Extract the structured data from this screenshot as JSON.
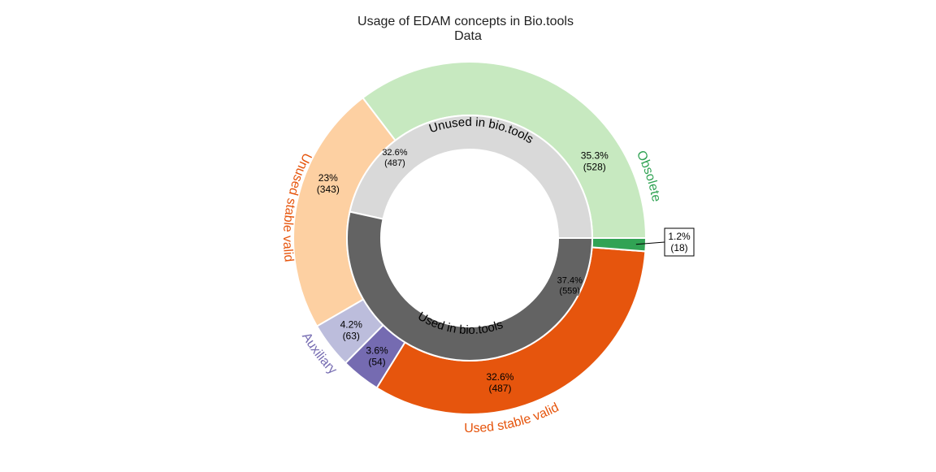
{
  "chart_data": {
    "type": "pie",
    "title": "Usage of EDAM concepts in Bio.tools",
    "subtitle": "Data",
    "outer_ring": [
      {
        "label": "Obsolete",
        "value": 528,
        "percent_label": "35.3%",
        "count_label": "(528)",
        "color": "#c7e9c0",
        "label_color": "#31a354"
      },
      {
        "label": "",
        "value": 18,
        "percent_label": "1.2%",
        "count_label": "(18)",
        "color": "#31a354"
      },
      {
        "label": "Used stable valid",
        "value": 487,
        "percent_label": "32.6%",
        "count_label": "(487)",
        "color": "#e6550d",
        "label_color": "#e6550d"
      },
      {
        "label": "",
        "value": 54,
        "percent_label": "3.6%",
        "count_label": "(54)",
        "color": "#756bb1"
      },
      {
        "label": "Auxiliary",
        "value": 63,
        "percent_label": "4.2%",
        "count_label": "(63)",
        "color": "#bcbddc",
        "label_color": "#756bb1"
      },
      {
        "label": "Unused stable valid",
        "value": 343,
        "percent_label": "23%",
        "count_label": "(343)",
        "color": "#fdd0a2",
        "label_color": "#e6550d"
      }
    ],
    "inner_ring": [
      {
        "label": "Used in bio.tools",
        "value": 559,
        "percent_label": "37.4%",
        "count_label": "(559)",
        "color": "#636363"
      },
      {
        "label": "Unused in bio.tools",
        "value": 487,
        "percent_label": "32.6%",
        "count_label": "(487)",
        "color": "#d9d9d9"
      }
    ]
  }
}
